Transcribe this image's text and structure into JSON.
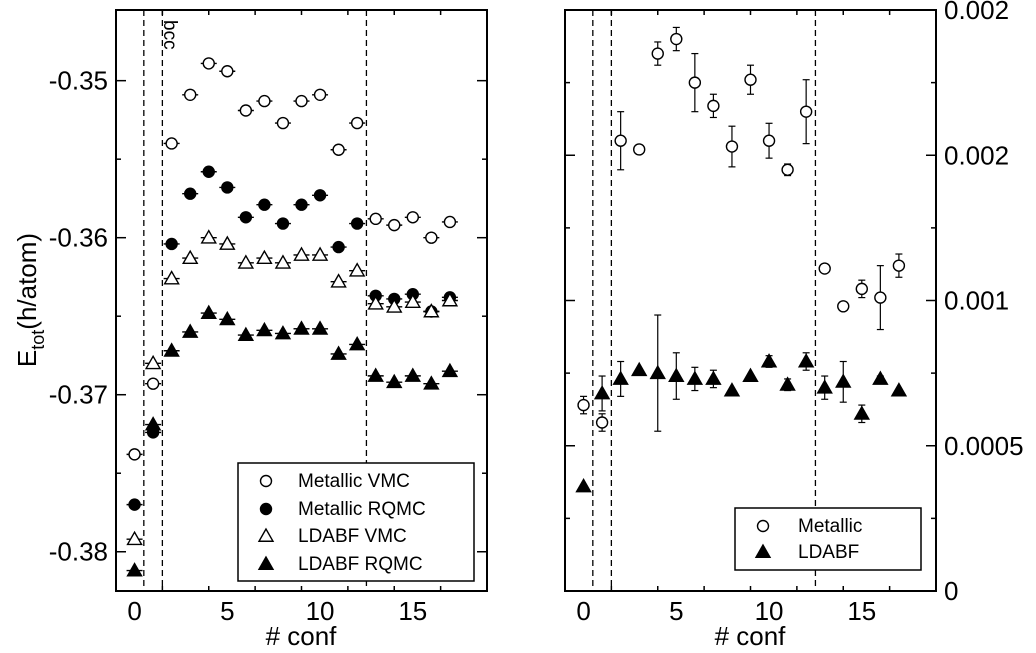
{
  "chart_data": [
    {
      "type": "scatter",
      "panel": "left",
      "xlabel": "# conf",
      "ylabel": {
        "main": "E",
        "sub": "tot",
        "unit": "(h/atom)"
      },
      "xlim": [
        -1,
        19
      ],
      "ylim": [
        -0.3825,
        -0.3455
      ],
      "xticks": [
        0,
        5,
        10,
        15
      ],
      "yticks": [
        -0.38,
        -0.37,
        -0.36,
        -0.35
      ],
      "xtick_labels": [
        "0",
        "5",
        "10",
        "15"
      ],
      "ytick_labels": [
        "-0.38",
        "-0.37",
        "-0.36",
        "-0.35"
      ],
      "vlines": [
        0.5,
        1.5,
        12.5
      ],
      "annotation": "bcc",
      "legend_position": "bottom-right",
      "series": [
        {
          "name": "Metallic VMC",
          "marker": "circle-open",
          "x": [
            0,
            1,
            2,
            3,
            4,
            5,
            6,
            7,
            8,
            9,
            10,
            11,
            12,
            13,
            14,
            15,
            16,
            17
          ],
          "y": [
            -0.3738,
            -0.3693,
            -0.354,
            -0.3509,
            -0.3489,
            -0.3494,
            -0.3519,
            -0.3513,
            -0.3527,
            -0.3513,
            -0.3509,
            -0.3544,
            -0.3527,
            -0.3588,
            -0.3592,
            -0.3587,
            -0.36,
            -0.359
          ]
        },
        {
          "name": "Metallic RQMC",
          "marker": "circle-filled",
          "x": [
            0,
            1,
            2,
            3,
            4,
            5,
            6,
            7,
            8,
            9,
            10,
            11,
            12,
            13,
            14,
            15,
            16,
            17
          ],
          "y": [
            -0.377,
            -0.3724,
            -0.3604,
            -0.3572,
            -0.3558,
            -0.3568,
            -0.3587,
            -0.3579,
            -0.3591,
            -0.3579,
            -0.3573,
            -0.3606,
            -0.3591,
            -0.3637,
            -0.3639,
            -0.3636,
            -0.3647,
            -0.3638
          ]
        },
        {
          "name": "LDABF VMC",
          "marker": "triangle-open",
          "x": [
            0,
            1,
            2,
            3,
            4,
            5,
            6,
            7,
            8,
            9,
            10,
            11,
            12,
            13,
            14,
            15,
            16,
            17
          ],
          "y": [
            -0.3792,
            -0.368,
            -0.3626,
            -0.3613,
            -0.36,
            -0.3604,
            -0.3616,
            -0.3613,
            -0.3616,
            -0.3611,
            -0.3611,
            -0.3628,
            -0.3621,
            -0.3642,
            -0.3644,
            -0.3641,
            -0.3647,
            -0.364
          ]
        },
        {
          "name": "LDABF RQMC",
          "marker": "triangle-filled",
          "x": [
            0,
            1,
            2,
            3,
            4,
            5,
            6,
            7,
            8,
            9,
            10,
            11,
            12,
            13,
            14,
            15,
            16,
            17
          ],
          "y": [
            -0.3812,
            -0.3719,
            -0.3672,
            -0.366,
            -0.3648,
            -0.3652,
            -0.3662,
            -0.3659,
            -0.3661,
            -0.3658,
            -0.3658,
            -0.3674,
            -0.3668,
            -0.3688,
            -0.3692,
            -0.3688,
            -0.3693,
            -0.3685
          ]
        }
      ]
    },
    {
      "type": "scatter",
      "panel": "right",
      "xlabel": "# conf",
      "xlim": [
        -1,
        19
      ],
      "ylim": [
        0,
        0.002
      ],
      "xticks": [
        0,
        5,
        10,
        15
      ],
      "yticks": [
        0,
        0.0005,
        0.001,
        0.0015,
        0.002
      ],
      "xtick_labels": [
        "0",
        "5",
        "10",
        "15"
      ],
      "ytick_labels": [
        "0",
        "0.0005",
        "0.001",
        "0.002",
        "0.002"
      ],
      "vlines": [
        0.5,
        1.5,
        12.5
      ],
      "legend_position": "bottom-right",
      "series": [
        {
          "name": "Metallic",
          "marker": "circle-open",
          "x": [
            0,
            1,
            2,
            3,
            4,
            5,
            6,
            7,
            8,
            9,
            10,
            11,
            12,
            13,
            14,
            15,
            16,
            17
          ],
          "y": [
            0.00064,
            0.00058,
            0.00155,
            0.00152,
            0.00185,
            0.0019,
            0.00175,
            0.00167,
            0.00153,
            0.00176,
            0.00155,
            0.00145,
            0.00165,
            0.00111,
            0.00098,
            0.00104,
            0.00101,
            0.00112
          ],
          "err": [
            3e-05,
            3e-05,
            0.0001,
            0,
            4e-05,
            4e-05,
            0.0001,
            4e-05,
            7e-05,
            5e-05,
            6e-05,
            2e-05,
            0.00011,
            0,
            0,
            3e-05,
            0.00011,
            4e-05
          ]
        },
        {
          "name": "LDABF",
          "marker": "triangle-filled",
          "x": [
            0,
            1,
            2,
            3,
            4,
            5,
            6,
            7,
            8,
            9,
            10,
            11,
            12,
            13,
            14,
            15,
            16,
            17
          ],
          "y": [
            0.00036,
            0.00068,
            0.00073,
            0.00076,
            0.00075,
            0.00074,
            0.00073,
            0.00073,
            0.00069,
            0.00074,
            0.00079,
            0.00071,
            0.00079,
            0.0007,
            0.00072,
            0.00061,
            0.00073,
            0.00069
          ],
          "err": [
            0,
            6e-05,
            6e-05,
            0,
            0.0002,
            8e-05,
            4e-05,
            3e-05,
            0,
            0,
            2e-05,
            2e-05,
            3e-05,
            4e-05,
            7e-05,
            3e-05,
            1e-05,
            0
          ]
        }
      ]
    }
  ]
}
